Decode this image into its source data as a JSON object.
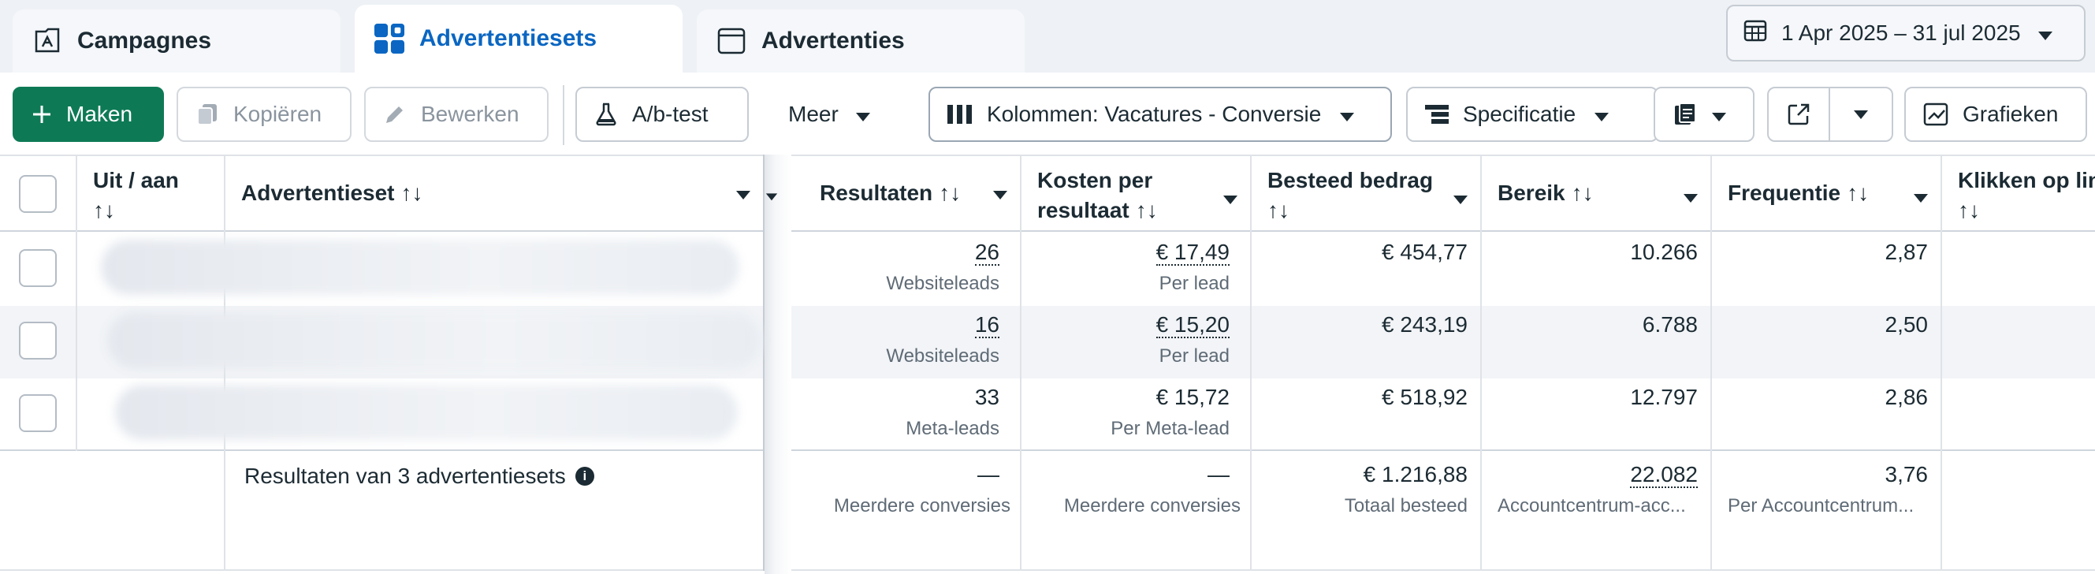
{
  "tabs": [
    {
      "label": "Campagnes",
      "icon": "campaign-flag-icon"
    },
    {
      "label": "Advertentiesets",
      "icon": "adsets-grid-icon",
      "active": true
    },
    {
      "label": "Advertenties",
      "icon": "ad-window-icon"
    }
  ],
  "date_range": {
    "label": "1 Apr 2025 – 31 jul 2025",
    "icon": "calendar-icon"
  },
  "toolbar": {
    "create": "Maken",
    "copy": "Kopiëren",
    "edit": "Bewerken",
    "ab_test": "A/b-test",
    "more": "Meer",
    "columns": "Kolommen: Vacatures - Conversie",
    "breakdown": "Specificatie",
    "charts": "Grafieken"
  },
  "columns": {
    "toggle": "Uit / aan",
    "adset": "Advertentieset",
    "results": "Resultaten",
    "cost_per_result_1": "Kosten per",
    "cost_per_result_2": "resultaat",
    "spent": "Besteed bedrag",
    "reach": "Bereik",
    "frequency": "Frequentie",
    "link_clicks": "Klikken op lin"
  },
  "rows": [
    {
      "results": "26",
      "results_sub": "Websiteleads",
      "cost": "€ 17,49",
      "cost_sub": "Per lead",
      "spent": "€ 454,77",
      "reach": "10.266",
      "frequency": "2,87"
    },
    {
      "results": "16",
      "results_sub": "Websiteleads",
      "cost": "€ 15,20",
      "cost_sub": "Per lead",
      "spent": "€ 243,19",
      "reach": "6.788",
      "frequency": "2,50"
    },
    {
      "results": "33",
      "results_sub": "Meta-leads",
      "cost": "€ 15,72",
      "cost_sub": "Per Meta-lead",
      "spent": "€ 518,92",
      "reach": "12.797",
      "frequency": "2,86"
    }
  ],
  "footer": {
    "label": "Resultaten van 3 advertentiesets",
    "results": "—",
    "results_sub": "Meerdere conversies",
    "cost": "—",
    "cost_sub": "Meerdere conversies",
    "spent": "€ 1.216,88",
    "spent_sub": "Totaal besteed",
    "reach": "22.082",
    "reach_sub": "Accountcentrum-acc...",
    "frequency": "3,76",
    "frequency_sub": "Per Accountcentrum..."
  },
  "sort_glyph": "↑↓",
  "colors": {
    "accent": "#0a66c2",
    "primary_button": "#0e7a55"
  }
}
